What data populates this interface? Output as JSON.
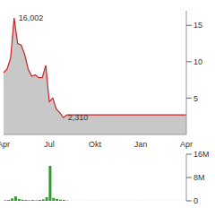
{
  "chart_data": [
    {
      "type": "area",
      "categories": [
        "Apr",
        null,
        null,
        null,
        null,
        null,
        null,
        null,
        null,
        null,
        null,
        null,
        null,
        "Jul",
        null,
        null,
        null,
        null,
        null,
        null,
        null,
        null,
        null,
        null,
        null,
        null,
        "Okt",
        null,
        null,
        null,
        null,
        null,
        null,
        null,
        null,
        null,
        null,
        null,
        null,
        "Jan",
        null,
        null,
        null,
        null,
        null,
        null,
        null,
        null,
        null,
        null,
        null,
        null,
        "Apr"
      ],
      "values": [
        8.5,
        9.0,
        10.5,
        16.002,
        12.5,
        12.3,
        11.0,
        9.0,
        8.0,
        8.2,
        7.8,
        7.8,
        9.5,
        4.5,
        5.0,
        3.5,
        3.0,
        2.31,
        2.7,
        2.7,
        2.7,
        2.7,
        2.7,
        2.7,
        2.7,
        2.7,
        2.7,
        2.7,
        2.7,
        2.7,
        2.7,
        2.7,
        2.7,
        2.7,
        2.7,
        2.7,
        2.7,
        2.7,
        2.7,
        2.7,
        2.7,
        2.7,
        2.7,
        2.7,
        2.7,
        2.7,
        2.7,
        2.7,
        2.7,
        2.7,
        2.7,
        2.7,
        2.7
      ],
      "color": "#cc2222",
      "ylim": [
        0,
        17
      ],
      "yticks": [
        5,
        10,
        15
      ],
      "annotations": [
        {
          "value": 16.002,
          "label": "16,002"
        },
        {
          "value": 2.31,
          "label": "2,310"
        }
      ]
    },
    {
      "type": "bar",
      "values": [
        200000,
        300000,
        800000,
        1500000,
        600000,
        400000,
        300000,
        200000,
        300000,
        200000,
        300000,
        500000,
        1200000,
        12000000,
        1000000,
        600000,
        400000,
        300000,
        100000,
        20000,
        20000,
        20000,
        20000,
        20000,
        20000,
        20000,
        20000,
        20000,
        20000,
        20000,
        20000,
        20000,
        20000,
        20000,
        20000,
        20000,
        20000,
        20000,
        20000,
        20000,
        20000,
        20000,
        20000,
        20000,
        20000,
        20000,
        20000,
        20000,
        20000,
        20000,
        20000,
        20000,
        20000
      ],
      "color": "#339933",
      "ylim": [
        0,
        16000000
      ],
      "yticks": [
        0,
        {
          "value": 8000000,
          "label": "8M"
        },
        {
          "value": 16000000,
          "label": "16M"
        }
      ],
      "tick_labels": "y"
    }
  ]
}
